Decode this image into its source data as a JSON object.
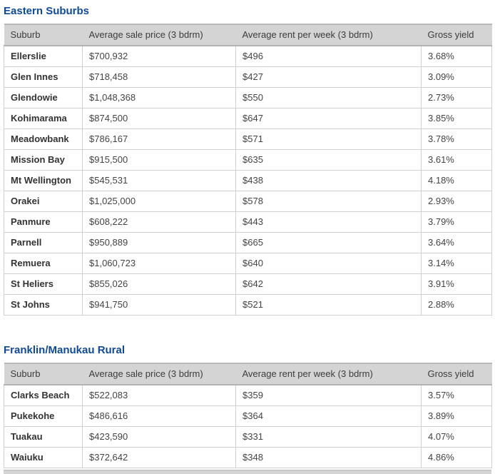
{
  "colors": {
    "title_blue": "#104a96",
    "header_bg": "#d4d4d4",
    "header_border": "#b3b3b3",
    "cell_border": "#d0d0d0",
    "body_text": "#444444"
  },
  "sections": [
    {
      "title": "Eastern Suburbs",
      "columns": [
        "Suburb",
        "Average sale price (3 bdrm)",
        "Average rent per week (3 bdrm)",
        "Gross yield"
      ],
      "rows": [
        [
          "Ellerslie",
          "$700,932",
          "$496",
          "3.68%"
        ],
        [
          "Glen Innes",
          "$718,458",
          "$427",
          "3.09%"
        ],
        [
          "Glendowie",
          "$1,048,368",
          "$550",
          "2.73%"
        ],
        [
          "Kohimarama",
          "$874,500",
          "$647",
          "3.85%"
        ],
        [
          "Meadowbank",
          "$786,167",
          "$571",
          "3.78%"
        ],
        [
          "Mission Bay",
          "$915,500",
          "$635",
          "3.61%"
        ],
        [
          "Mt Wellington",
          "$545,531",
          "$438",
          "4.18%"
        ],
        [
          "Orakei",
          "$1,025,000",
          "$578",
          "2.93%"
        ],
        [
          "Panmure",
          "$608,222",
          "$443",
          "3.79%"
        ],
        [
          "Parnell",
          "$950,889",
          "$665",
          "3.64%"
        ],
        [
          "Remuera",
          "$1,060,723",
          "$640",
          "3.14%"
        ],
        [
          "St Heliers",
          "$855,026",
          "$642",
          "3.91%"
        ],
        [
          "St Johns",
          "$941,750",
          "$521",
          "2.88%"
        ]
      ]
    },
    {
      "title": "Franklin/Manukau Rural",
      "columns": [
        "Suburb",
        "Average sale price (3 bdrm)",
        "Average rent per week (3 bdrm)",
        "Gross yield"
      ],
      "rows": [
        [
          "Clarks Beach",
          "$522,083",
          "$359",
          "3.57%"
        ],
        [
          "Pukekohe",
          "$486,616",
          "$364",
          "3.89%"
        ],
        [
          "Tuakau",
          "$423,590",
          "$331",
          "4.07%"
        ],
        [
          "Waiuku",
          "$372,642",
          "$348",
          "4.86%"
        ]
      ]
    }
  ]
}
